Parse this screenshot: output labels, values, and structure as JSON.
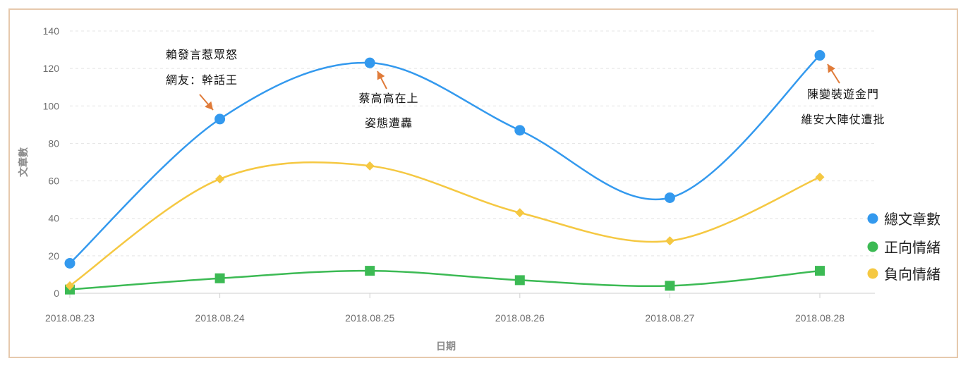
{
  "chart_data": {
    "type": "line",
    "xlabel": "日期",
    "ylabel": "文章數",
    "categories": [
      "2018.08.23",
      "2018.08.24",
      "2018.08.25",
      "2018.08.26",
      "2018.08.27",
      "2018.08.28"
    ],
    "ylim": [
      0,
      140
    ],
    "yticks": [
      0,
      20,
      40,
      60,
      80,
      100,
      120,
      140
    ],
    "grid": true,
    "legend": "right",
    "series": [
      {
        "name": "總文章數",
        "values": [
          16,
          93,
          123,
          87,
          51,
          127
        ],
        "color": "#3399ee",
        "marker": "circle"
      },
      {
        "name": "正向情緒",
        "values": [
          2,
          8,
          12,
          7,
          4,
          12
        ],
        "color": "#3cba54",
        "marker": "square"
      },
      {
        "name": "負向情緒",
        "values": [
          4,
          61,
          68,
          43,
          28,
          62
        ],
        "color": "#f5c842",
        "marker": "diamond"
      }
    ],
    "annotations": [
      {
        "category_index": 1,
        "lines": [
          "賴發言惹眾怒",
          "網友：幹話王"
        ],
        "side": "above-left"
      },
      {
        "category_index": 2,
        "lines": [
          "蔡高高在上",
          "姿態遭轟"
        ],
        "side": "below-right"
      },
      {
        "category_index": 5,
        "lines": [
          "陳變裝遊金門",
          "維安大陣仗遭批"
        ],
        "side": "below-left"
      }
    ],
    "arrow_color": "#e07b39"
  }
}
